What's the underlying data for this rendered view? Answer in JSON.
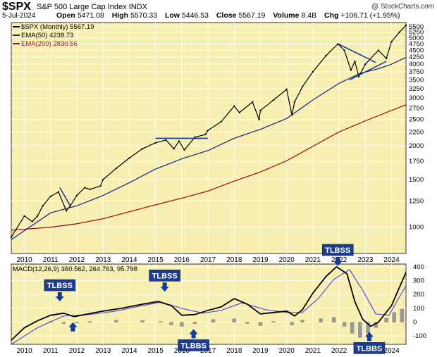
{
  "header": {
    "symbol": "$SPX",
    "name": "S&P 500 Large Cap Index INDX",
    "watermark": "@ StockCharts.com",
    "date": "5-Jul-2024",
    "open_label": "Open",
    "open": "5471.08",
    "high_label": "High",
    "high": "5570.33",
    "low_label": "Low",
    "low": "5446.53",
    "close_label": "Close",
    "close": "5567.19",
    "volume_label": "Volume",
    "volume": "8.4B",
    "chg_label": "Chg",
    "chg": "+106.71 (+1.95%)"
  },
  "legend": {
    "price": "$SPX (Monthly) 5567.19",
    "ema50": "EMA(50) 4238.73",
    "ema200": "EMA(200) 2830.56",
    "macd": "MACD(12,26,9) 360.562, 264.763, 95.798"
  },
  "colors": {
    "background": "#f6efb1",
    "price": "#000000",
    "ema50": "#1f2f86",
    "ema200": "#a31414",
    "signal": "#5a4fd0",
    "hist": "#999999",
    "annotation": "#123a9a",
    "label_bg": "#1e3c8e"
  },
  "chart_data": [
    {
      "type": "line",
      "title": "S&P 500 Large Cap Index (Monthly)",
      "scale": "log",
      "ylim": [
        800,
        5700
      ],
      "yticks": [
        5500,
        5250,
        5000,
        4750,
        4500,
        4250,
        4000,
        3750,
        3500,
        3250,
        3000,
        2750,
        2500,
        2250,
        2000,
        1750,
        1500,
        1250,
        1000
      ],
      "xticks": [
        "2010",
        "2011",
        "2012",
        "2013",
        "2014",
        "2015",
        "2016",
        "2017",
        "2018",
        "2019",
        "2020",
        "2021",
        "2022",
        "2023",
        "2024"
      ],
      "xlim": [
        2009.5,
        2024.55
      ],
      "grid": true,
      "legend": "top-left",
      "series": [
        {
          "name": "$SPX (Monthly)",
          "x": [
            2009.5,
            2010.0,
            2010.3,
            2010.5,
            2010.7,
            2011.0,
            2011.3,
            2011.6,
            2011.75,
            2012.0,
            2012.3,
            2012.5,
            2012.9,
            2013.0,
            2013.5,
            2014.0,
            2014.5,
            2015.0,
            2015.4,
            2015.7,
            2015.9,
            2016.1,
            2016.5,
            2016.9,
            2017.0,
            2017.5,
            2018.0,
            2018.2,
            2018.7,
            2018.95,
            2019.0,
            2019.5,
            2020.0,
            2020.2,
            2020.3,
            2020.6,
            2021.0,
            2021.5,
            2021.95,
            2022.2,
            2022.45,
            2022.6,
            2022.75,
            2023.0,
            2023.5,
            2023.8,
            2024.0,
            2024.3,
            2024.55
          ],
          "y": [
            920,
            1100,
            1050,
            1100,
            1200,
            1300,
            1350,
            1150,
            1200,
            1310,
            1400,
            1380,
            1420,
            1500,
            1650,
            1800,
            1950,
            2050,
            2100,
            1950,
            2080,
            1930,
            2150,
            2200,
            2280,
            2450,
            2800,
            2650,
            2900,
            2500,
            2700,
            2950,
            3230,
            2600,
            2900,
            3300,
            3750,
            4300,
            4750,
            4500,
            3800,
            4100,
            3600,
            4000,
            4500,
            4200,
            4850,
            5250,
            5567
          ]
        },
        {
          "name": "EMA(50)",
          "x": [
            2009.5,
            2011,
            2012,
            2013,
            2014,
            2015,
            2016,
            2017,
            2018,
            2019,
            2020,
            2021,
            2022,
            2022.8,
            2023.5,
            2024,
            2024.55
          ],
          "y": [
            900,
            1130,
            1200,
            1310,
            1460,
            1640,
            1790,
            1920,
            2130,
            2300,
            2520,
            2950,
            3400,
            3700,
            3850,
            4000,
            4238.73
          ]
        },
        {
          "name": "EMA(200)",
          "x": [
            2009.5,
            2011,
            2012,
            2013,
            2014,
            2015,
            2016,
            2017,
            2018,
            2019,
            2020,
            2021,
            2022,
            2023,
            2024,
            2024.55
          ],
          "y": [
            975,
            1000,
            1030,
            1075,
            1140,
            1210,
            1280,
            1360,
            1480,
            1600,
            1760,
            1990,
            2250,
            2470,
            2700,
            2830.56
          ]
        }
      ]
    },
    {
      "type": "line",
      "title": "MACD(12,26,9)",
      "ylim": [
        -160,
        420
      ],
      "yticks": [
        400,
        300,
        200,
        100,
        0,
        -100
      ],
      "xticks": [
        "2010",
        "2011",
        "2012",
        "2013",
        "2014",
        "2015",
        "2016",
        "2017",
        "2018",
        "2019",
        "2020",
        "2021",
        "2022",
        "2023",
        "2024"
      ],
      "xlim": [
        2009.5,
        2024.55
      ],
      "series": [
        {
          "name": "MACD",
          "x": [
            2009.5,
            2010.0,
            2010.5,
            2011.0,
            2011.5,
            2011.9,
            2012.3,
            2013.0,
            2013.7,
            2014.5,
            2015.1,
            2015.6,
            2016.0,
            2016.5,
            2017.0,
            2017.5,
            2018.0,
            2018.5,
            2019.0,
            2019.5,
            2020.0,
            2020.3,
            2020.6,
            2021.0,
            2021.5,
            2021.9,
            2022.3,
            2022.6,
            2022.9,
            2023.2,
            2023.5,
            2024.0,
            2024.55
          ],
          "y": [
            -130,
            -40,
            10,
            50,
            65,
            40,
            55,
            80,
            100,
            130,
            150,
            120,
            50,
            55,
            85,
            110,
            170,
            130,
            60,
            70,
            80,
            45,
            90,
            210,
            330,
            400,
            350,
            150,
            20,
            -30,
            0,
            120,
            360.562
          ]
        },
        {
          "name": "Signal",
          "x": [
            2009.5,
            2010.5,
            2011.5,
            2012.5,
            2013.5,
            2014.5,
            2015.2,
            2016.0,
            2016.8,
            2017.5,
            2018.3,
            2019.2,
            2020.0,
            2020.6,
            2021.2,
            2021.8,
            2022.4,
            2022.9,
            2023.4,
            2023.9,
            2024.55
          ],
          "y": [
            -160,
            -40,
            45,
            55,
            80,
            120,
            145,
            100,
            65,
            85,
            140,
            90,
            70,
            70,
            170,
            310,
            380,
            230,
            60,
            50,
            264.763
          ]
        },
        {
          "name": "Histogram",
          "x": [
            2011.0,
            2011.5,
            2012.0,
            2012.5,
            2013.5,
            2014.5,
            2015.2,
            2015.6,
            2016.0,
            2016.5,
            2017.2,
            2018.0,
            2018.5,
            2019.0,
            2019.5,
            2020.2,
            2020.6,
            2021.3,
            2021.8,
            2022.2,
            2022.5,
            2022.8,
            2023.1,
            2023.4,
            2023.8,
            2024.1,
            2024.4
          ],
          "y": [
            5,
            -10,
            -5,
            5,
            15,
            12,
            5,
            -20,
            -30,
            -12,
            20,
            25,
            -10,
            -25,
            5,
            -20,
            15,
            25,
            35,
            -30,
            -80,
            -110,
            -80,
            -40,
            30,
            70,
            95.798
          ]
        }
      ]
    }
  ],
  "annotations": [
    {
      "text": "TLBSS",
      "x": 2011.35,
      "y": 145,
      "arrow": "down"
    },
    {
      "text": "TLBSS",
      "x": 2015.35,
      "y": 215,
      "arrow": "down"
    },
    {
      "text": "TLBBS",
      "x": 2016.45,
      "y": -45,
      "arrow": "up"
    },
    {
      "text": "TLBSS",
      "x": 2021.95,
      "y": 400,
      "arrow": "down"
    },
    {
      "text": "TLBBS",
      "x": 2023.15,
      "y": -65,
      "arrow": "up"
    },
    {
      "text": "",
      "x": 2011.85,
      "y": 5,
      "arrow": "up"
    }
  ]
}
